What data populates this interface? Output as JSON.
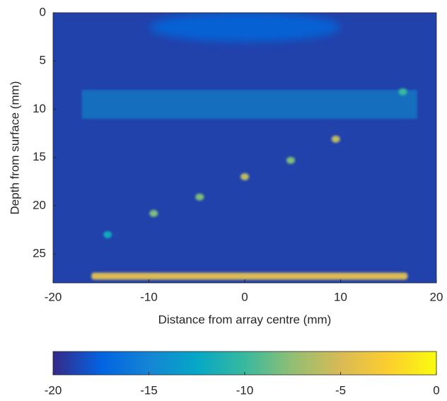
{
  "chart_data": {
    "type": "heatmap",
    "xlabel": "Distance from array centre (mm)",
    "ylabel": "Depth from surface (mm)",
    "xlim": [
      -20,
      20
    ],
    "xticks": [
      -20,
      -10,
      0,
      10,
      20
    ],
    "ylim": [
      0,
      28
    ],
    "yticks": [
      0,
      5,
      10,
      15,
      20,
      25
    ],
    "y_reversed": true,
    "clim": [
      -20,
      0
    ],
    "colorbar_ticks": [
      -20,
      -15,
      -10,
      -5,
      0
    ],
    "background_value": -19,
    "surface": {
      "x": [
        -10,
        10
      ],
      "y": [
        0,
        3
      ],
      "value": -17
    },
    "noise_band": {
      "x": [
        -17,
        18
      ],
      "y": [
        8,
        11
      ],
      "value": -14
    },
    "spots": [
      {
        "x": -14.3,
        "y": 23,
        "value": -12
      },
      {
        "x": -9.5,
        "y": 20.8,
        "value": -8
      },
      {
        "x": -4.7,
        "y": 19.1,
        "value": -8
      },
      {
        "x": 0,
        "y": 17,
        "value": -6
      },
      {
        "x": 4.8,
        "y": 15.3,
        "value": -8
      },
      {
        "x": 9.5,
        "y": 13.1,
        "value": -6
      },
      {
        "x": 16.5,
        "y": 8.2,
        "value": -10
      }
    ],
    "backwall": {
      "x": [
        -16,
        17
      ],
      "y": 27.3,
      "value": -5
    }
  }
}
